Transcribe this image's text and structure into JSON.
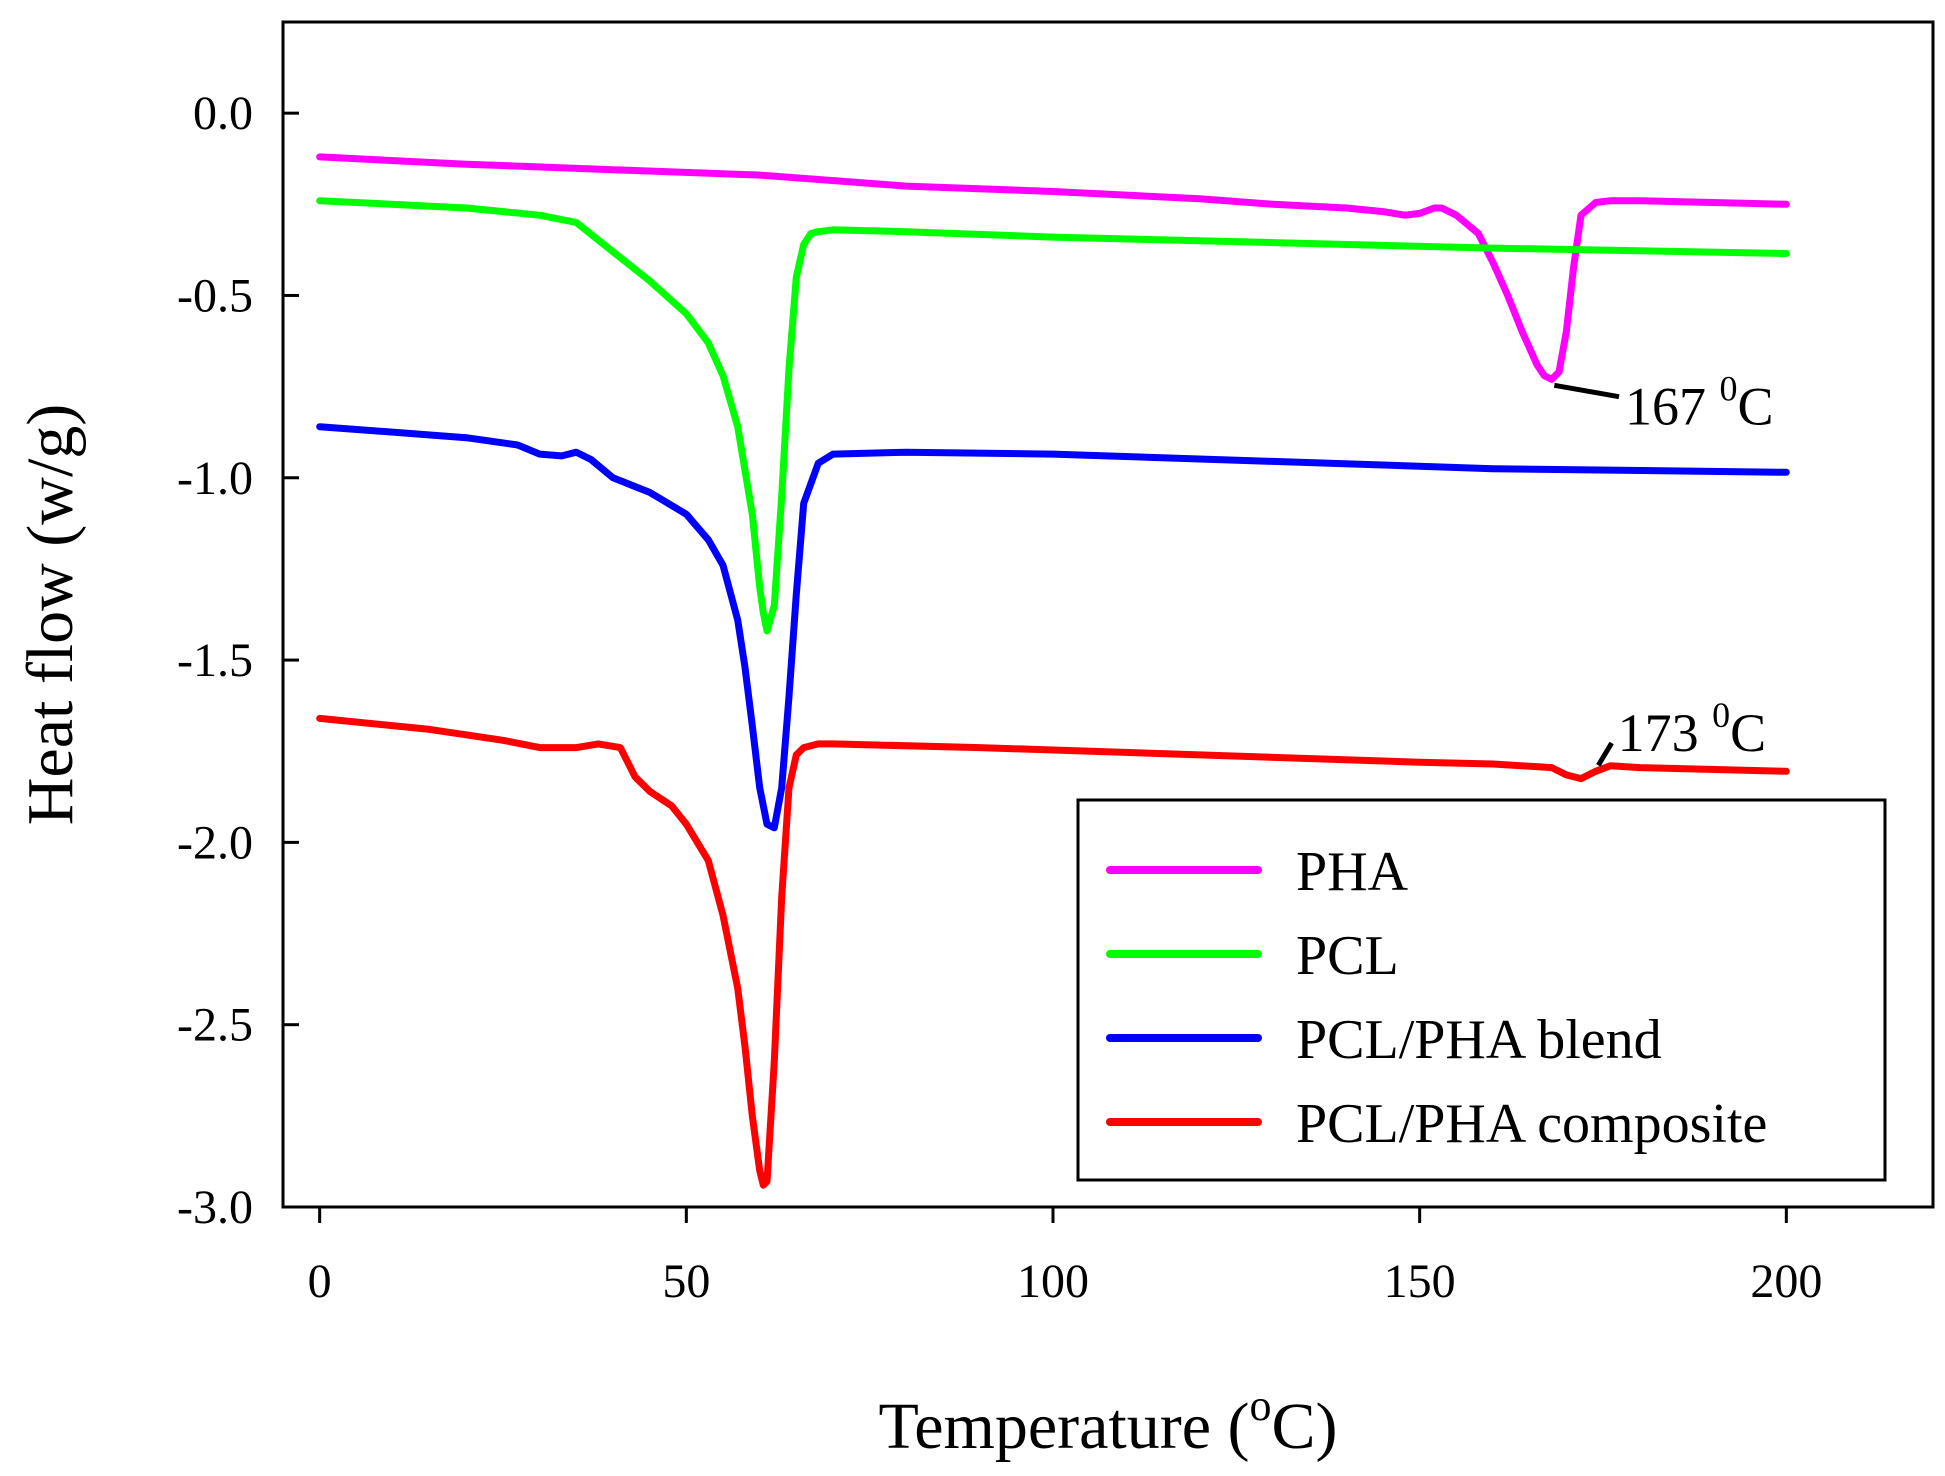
{
  "chart_data": {
    "type": "line",
    "title": "",
    "xlabel": "Temperature",
    "xlabel_unit_base": "C",
    "xlabel_unit_superscript": "o",
    "ylabel": "Heat flow (w/g)",
    "xlim": [
      -5,
      220
    ],
    "ylim": [
      -3.0,
      0.25
    ],
    "xticks": [
      0,
      50,
      100,
      150,
      200
    ],
    "xtick_labels": [
      "0",
      "50",
      "100",
      "150",
      "200"
    ],
    "yticks": [
      0.0,
      -0.5,
      -1.0,
      -1.5,
      -2.0,
      -2.5,
      -3.0
    ],
    "ytick_labels": [
      "0.0",
      "-0.5",
      "-1.0",
      "-1.5",
      "-2.0",
      "-2.5",
      "-3.0"
    ],
    "grid": false,
    "legend_position": "bottom-right",
    "series": [
      {
        "name": "PHA",
        "color": "#ff00ff",
        "x": [
          0,
          20,
          40,
          60,
          80,
          100,
          120,
          130,
          140,
          145,
          148,
          150,
          152,
          153,
          155,
          158,
          160,
          162,
          164,
          166,
          167,
          168,
          169,
          170,
          171,
          172,
          174,
          176,
          180,
          190,
          200
        ],
        "y": [
          -0.12,
          -0.14,
          -0.155,
          -0.17,
          -0.2,
          -0.215,
          -0.235,
          -0.25,
          -0.26,
          -0.27,
          -0.28,
          -0.275,
          -0.26,
          -0.26,
          -0.28,
          -0.33,
          -0.41,
          -0.5,
          -0.6,
          -0.69,
          -0.72,
          -0.73,
          -0.71,
          -0.6,
          -0.42,
          -0.28,
          -0.245,
          -0.24,
          -0.24,
          -0.245,
          -0.25
        ]
      },
      {
        "name": "PCL",
        "color": "#00ff00",
        "x": [
          0,
          20,
          30,
          35,
          40,
          45,
          50,
          53,
          55,
          57,
          59,
          60,
          60.5,
          61,
          62,
          63,
          64,
          65,
          66,
          67,
          68,
          70,
          80,
          100,
          130,
          160,
          200
        ],
        "y": [
          -0.24,
          -0.26,
          -0.28,
          -0.3,
          -0.38,
          -0.46,
          -0.55,
          -0.63,
          -0.72,
          -0.86,
          -1.1,
          -1.3,
          -1.37,
          -1.42,
          -1.35,
          -1.05,
          -0.7,
          -0.45,
          -0.36,
          -0.33,
          -0.325,
          -0.32,
          -0.325,
          -0.34,
          -0.355,
          -0.37,
          -0.385
        ]
      },
      {
        "name": "PCL/PHA blend",
        "color": "#0000ff",
        "x": [
          0,
          20,
          27,
          30,
          33,
          35,
          37,
          40,
          45,
          50,
          53,
          55,
          57,
          58,
          59,
          60,
          61,
          62,
          63,
          64,
          65,
          66,
          68,
          70,
          80,
          100,
          130,
          160,
          200
        ],
        "y": [
          -0.86,
          -0.89,
          -0.91,
          -0.935,
          -0.94,
          -0.93,
          -0.95,
          -1.0,
          -1.04,
          -1.1,
          -1.17,
          -1.24,
          -1.39,
          -1.52,
          -1.68,
          -1.85,
          -1.95,
          -1.96,
          -1.85,
          -1.6,
          -1.32,
          -1.07,
          -0.96,
          -0.935,
          -0.93,
          -0.935,
          -0.955,
          -0.975,
          -0.985
        ]
      },
      {
        "name": "PCL/PHA composite",
        "color": "#ff0000",
        "x": [
          0,
          15,
          25,
          30,
          35,
          38,
          41,
          42,
          43,
          45,
          48,
          50,
          53,
          55,
          57,
          58,
          59,
          60,
          60.5,
          61,
          62,
          63,
          64,
          65,
          66,
          68,
          70,
          90,
          120,
          150,
          160,
          168,
          170,
          172,
          174,
          176,
          180,
          200
        ],
        "y": [
          -1.66,
          -1.69,
          -1.72,
          -1.74,
          -1.74,
          -1.73,
          -1.74,
          -1.78,
          -1.82,
          -1.86,
          -1.9,
          -1.95,
          -2.05,
          -2.2,
          -2.4,
          -2.56,
          -2.75,
          -2.9,
          -2.94,
          -2.93,
          -2.6,
          -2.15,
          -1.85,
          -1.76,
          -1.74,
          -1.73,
          -1.73,
          -1.74,
          -1.76,
          -1.78,
          -1.785,
          -1.795,
          -1.815,
          -1.825,
          -1.805,
          -1.79,
          -1.795,
          -1.805
        ]
      }
    ],
    "annotations": [
      {
        "text": "167",
        "superscript": "0",
        "unit": "C",
        "x": 167,
        "y": -0.73,
        "label_x": 178,
        "label_y": -0.805
      },
      {
        "text": "173",
        "superscript": "0",
        "unit": "C",
        "x": 173,
        "y": -1.805,
        "label_x": 177,
        "label_y": -1.7
      }
    ]
  }
}
